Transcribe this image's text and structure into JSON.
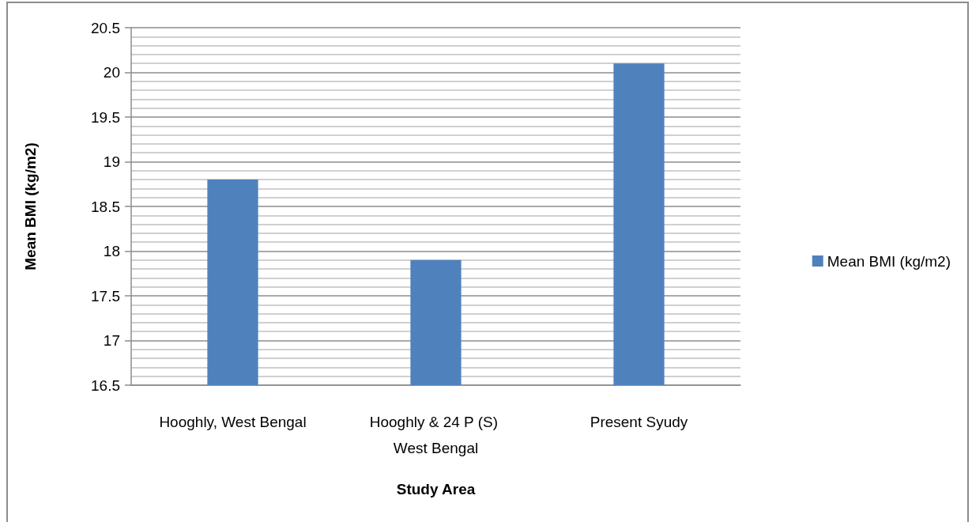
{
  "chart_data": {
    "type": "bar",
    "xlabel": "Study Area",
    "ylabel": "Mean BMI (kg/m2)",
    "categories": [
      "Hooghly, West Bengal",
      "Hooghly & 24 P (S) West Bengal",
      "Present Syudy"
    ],
    "series": [
      {
        "name": "Mean BMI (kg/m2)",
        "color": "#4f81bd",
        "values": [
          18.8,
          17.9,
          20.1
        ]
      }
    ],
    "ylim": [
      16.5,
      20.5
    ],
    "yticks": [
      16.5,
      17,
      17.5,
      18,
      18.5,
      19,
      19.5,
      20,
      20.5
    ],
    "grid": "y",
    "legend": "right"
  }
}
